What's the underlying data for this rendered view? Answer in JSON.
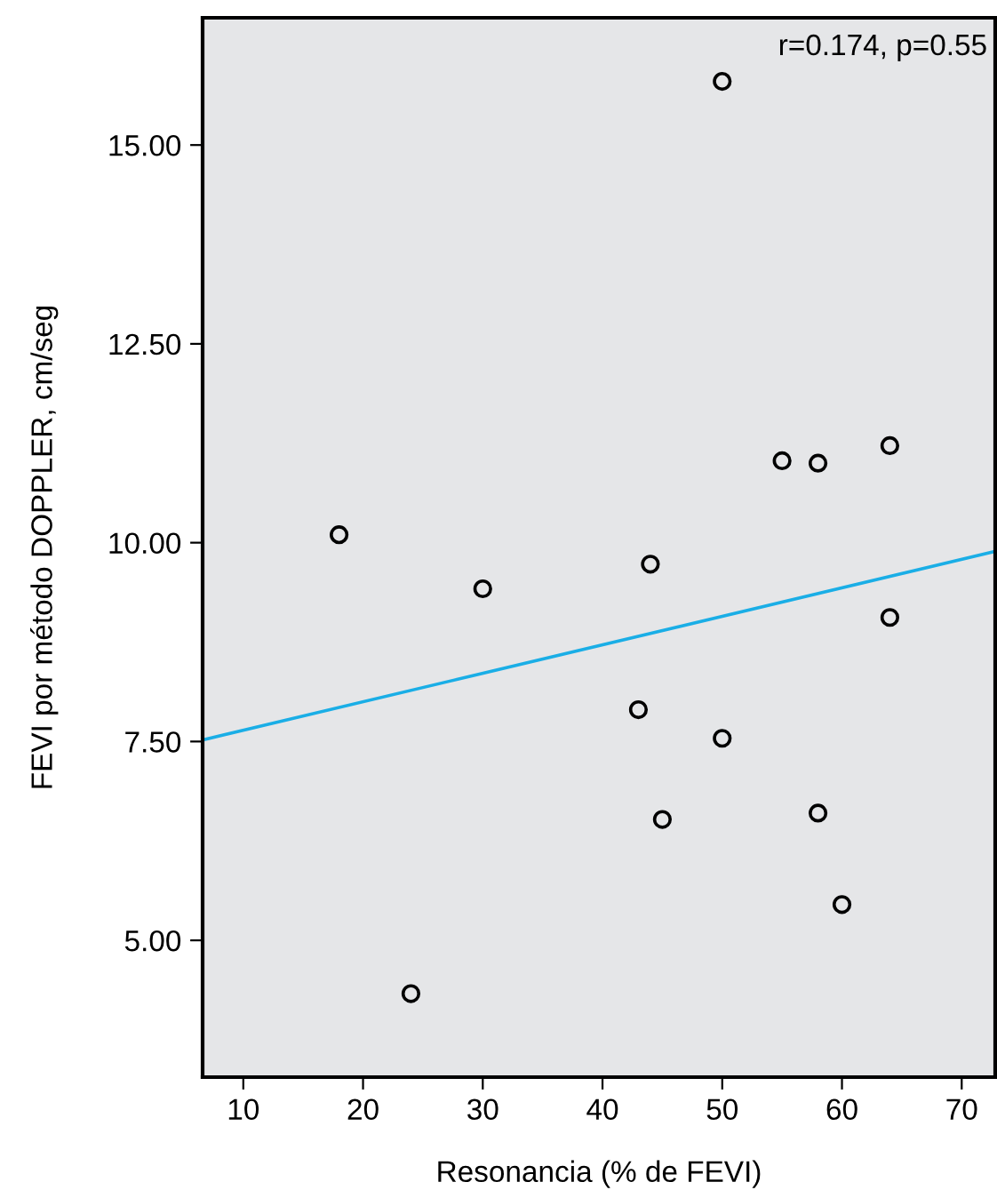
{
  "chart_data": {
    "type": "scatter",
    "xlabel": "Resonancia (% de FEVI)",
    "ylabel": "FEVI por método DOPPLER, cm/seg",
    "annotations": [
      "r=0.174, p=0.55"
    ],
    "series": [
      {
        "color": "#000000",
        "marker": "circle",
        "x": [
          18,
          50,
          55,
          58,
          64,
          44,
          30,
          64,
          43,
          50,
          45,
          58,
          60,
          24
        ],
        "values": [
          10.1,
          15.8,
          11.03,
          11.0,
          11.22,
          9.73,
          9.42,
          9.06,
          7.9,
          7.54,
          6.52,
          6.6,
          5.45,
          4.33
        ]
      },
      {
        "type": "line",
        "color": "#1aaee6",
        "x": [
          6.6,
          72.8
        ],
        "values": [
          7.52,
          9.89
        ]
      }
    ],
    "xlim": [
      6.6,
      72.8
    ],
    "ylim": [
      3.28,
      16.6
    ],
    "xticks": [
      10,
      20,
      30,
      40,
      50,
      60,
      70
    ],
    "yticks": [
      {
        "value": 5,
        "label": "5.00"
      },
      {
        "value": 7.5,
        "label": "7.50"
      },
      {
        "value": 10,
        "label": "10.00"
      },
      {
        "value": 12.5,
        "label": "12.50"
      },
      {
        "value": 15,
        "label": "15.00"
      }
    ],
    "grid": false,
    "legend": false
  }
}
